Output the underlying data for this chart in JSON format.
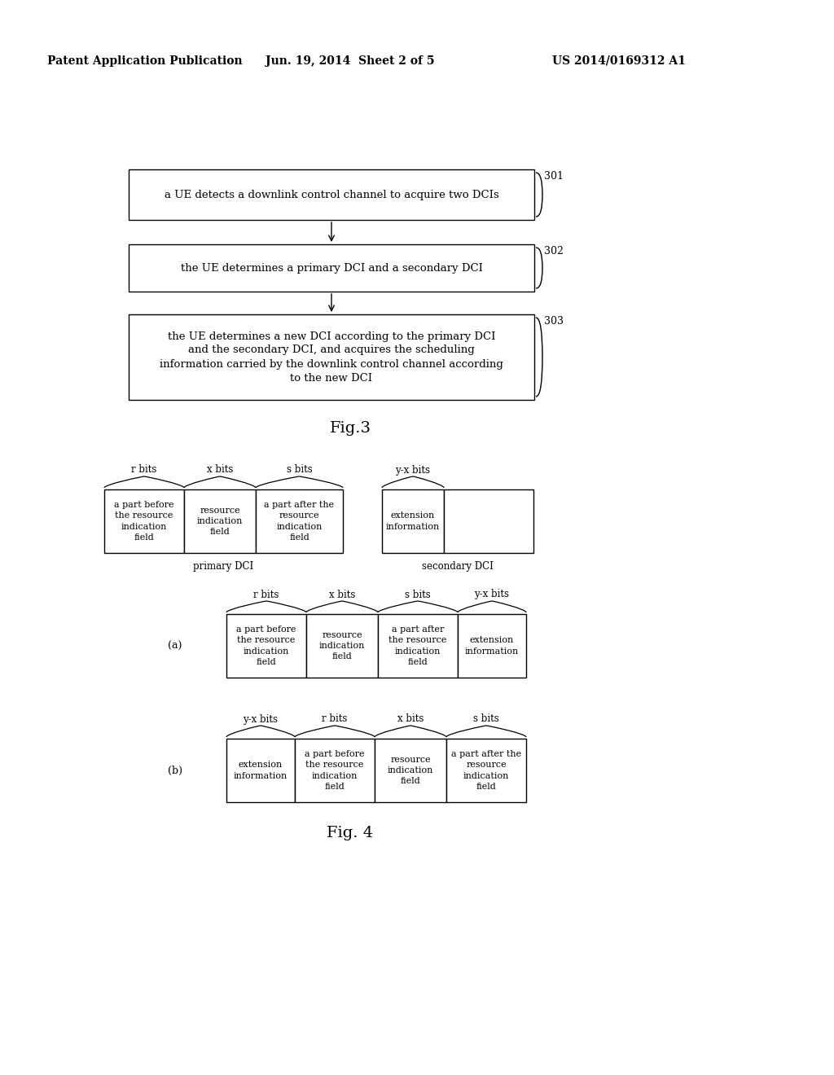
{
  "bg_color": "#ffffff",
  "header_left": "Patent Application Publication",
  "header_mid": "Jun. 19, 2014  Sheet 2 of 5",
  "header_right": "US 2014/0169312 A1",
  "fig3_box1_text": "a UE detects a downlink control channel to acquire two DCIs",
  "fig3_box2_text": "the UE determines a primary DCI and a secondary DCI",
  "fig3_box3_text": "the UE determines a new DCI according to the primary DCI\nand the secondary DCI, and acquires the scheduling\ninformation carried by the downlink control channel according\nto the new DCI",
  "fig3_label": "Fig.3",
  "fig3_step1": "301",
  "fig3_step2": "302",
  "fig3_step3": "303",
  "fig4_label": "Fig. 4",
  "fig4_label_a": "(a)",
  "fig4_label_b": "(b)",
  "primary_dci_label": "primary DCI",
  "secondary_dci_label": "secondary DCI",
  "cell_texts": {
    "part_before": "a part before\nthe resource\nindication\nfield",
    "res_ind": "resource\nindication\nfield",
    "part_after": "a part after the\nresource\nindication\nfield",
    "extension": "extension\ninformation",
    "part_after_short": "a part after\nthe resource\nindication\nfield",
    "part_after_long": "a part after the\nresource\nindication\nfield"
  }
}
